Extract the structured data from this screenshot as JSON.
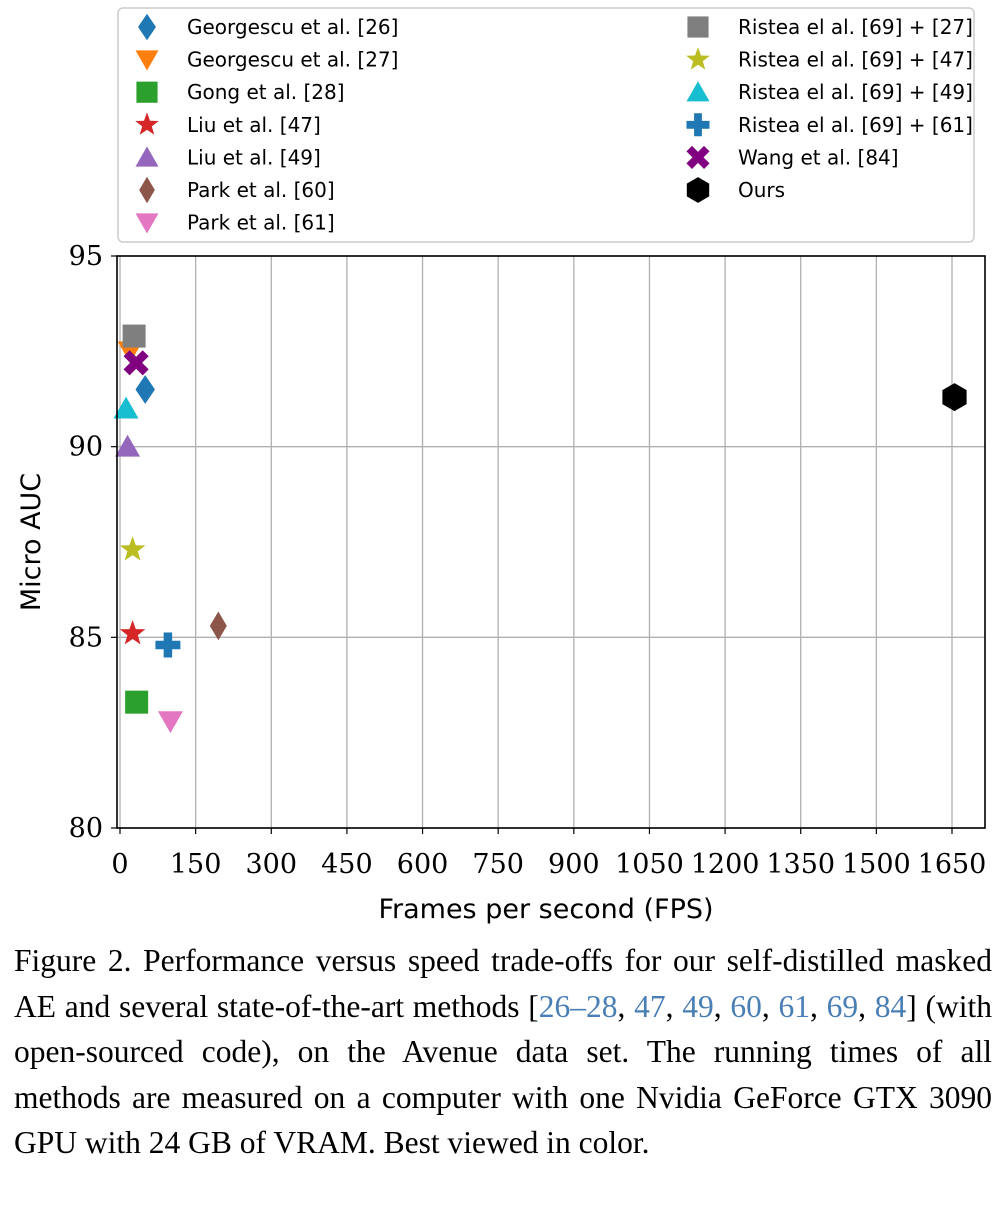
{
  "chart_data": {
    "type": "scatter",
    "xlabel": "Frames per second (FPS)",
    "ylabel": "Micro AUC",
    "xlim": [
      0,
      1720
    ],
    "ylim": [
      80,
      95
    ],
    "xticks": [
      0,
      150,
      300,
      450,
      600,
      750,
      900,
      1050,
      1200,
      1350,
      1500,
      1650
    ],
    "yticks": [
      80,
      85,
      90,
      95
    ],
    "grid": true,
    "legend_placement": "top",
    "series": [
      {
        "name": "Georgescu et al. [26]",
        "marker": "diamond",
        "color": "#1f77b4",
        "x": [
          50
        ],
        "y": [
          91.5
        ]
      },
      {
        "name": "Georgescu et al. [27]",
        "marker": "triangle-down",
        "color": "#ff7f0e",
        "x": [
          20
        ],
        "y": [
          92.5
        ]
      },
      {
        "name": "Gong et al. [28]",
        "marker": "square",
        "color": "#2ca02c",
        "x": [
          33
        ],
        "y": [
          83.3
        ]
      },
      {
        "name": "Liu et al. [47]",
        "marker": "star",
        "color": "#d62728",
        "x": [
          25
        ],
        "y": [
          85.1
        ]
      },
      {
        "name": "Liu et al. [49]",
        "marker": "triangle-up",
        "color": "#9467bd",
        "x": [
          15
        ],
        "y": [
          90.0
        ]
      },
      {
        "name": "Park et al. [60]",
        "marker": "thin-diamond",
        "color": "#8c564b",
        "x": [
          195
        ],
        "y": [
          85.3
        ]
      },
      {
        "name": "Park et al. [61]",
        "marker": "triangle-down",
        "color": "#e377c2",
        "x": [
          100
        ],
        "y": [
          82.8
        ]
      },
      {
        "name": "Ristea el al. [69] + [27]",
        "marker": "square",
        "color": "#7f7f7f",
        "x": [
          28
        ],
        "y": [
          92.9
        ]
      },
      {
        "name": "Ristea el al. [69] + [47]",
        "marker": "star",
        "color": "#bcbd22",
        "x": [
          25
        ],
        "y": [
          87.3
        ]
      },
      {
        "name": "Ristea el al. [69] + [49]",
        "marker": "triangle-up",
        "color": "#17becf",
        "x": [
          12
        ],
        "y": [
          91.0
        ]
      },
      {
        "name": "Ristea el al. [69] + [61]",
        "marker": "plus",
        "color": "#1f77b4",
        "x": [
          95
        ],
        "y": [
          84.8
        ]
      },
      {
        "name": "Wang et al. [84]",
        "marker": "x",
        "color": "#800080",
        "x": [
          32
        ],
        "y": [
          92.2
        ]
      },
      {
        "name": "Ours",
        "marker": "hexagon",
        "color": "#000000",
        "x": [
          1655
        ],
        "y": [
          91.3
        ]
      }
    ]
  },
  "caption": {
    "lead": "Figure 2. Performance versus speed trade-offs for our self-distilled masked AE and several state-of-the-art methods [",
    "refs": [
      "26–28",
      "47",
      "49",
      "60",
      "61",
      "69",
      "84"
    ],
    "tail": "] (with open-sourced code), on the Avenue data set. The running times of all methods are measured on a computer with one Nvidia GeForce GTX 3090 GPU with 24 GB of VRAM. Best viewed in color."
  }
}
